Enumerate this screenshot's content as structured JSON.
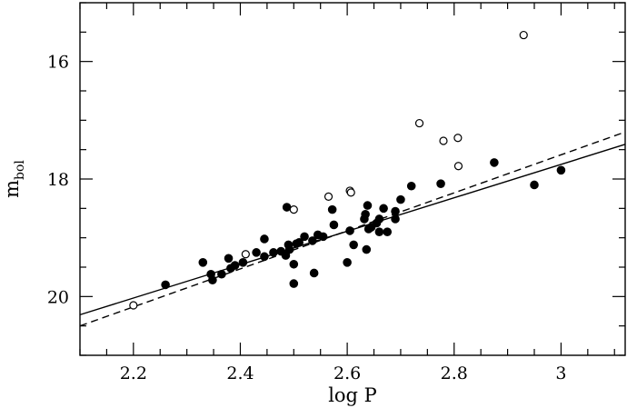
{
  "chart_data": {
    "type": "scatter",
    "title": "",
    "xlabel": "log  P",
    "ylabel": {
      "main": "m",
      "sub": "bol"
    },
    "xlim": [
      2.1,
      3.12
    ],
    "ylim": [
      21.0,
      15.0
    ],
    "y_inverted": true,
    "x_ticks": [
      2.2,
      2.4,
      2.6,
      2.8,
      3.0
    ],
    "x_tick_labels": [
      "2.2",
      "2.4",
      "2.6",
      "2.8",
      "3"
    ],
    "y_ticks": [
      16,
      18,
      20
    ],
    "y_tick_labels": [
      "16",
      "18",
      "20"
    ],
    "x_minor_step": 0.05,
    "y_minor_step": 0.5,
    "grid": false,
    "legend": "none",
    "series": [
      {
        "marker": "filled-circle",
        "color": "#000000",
        "points": [
          [
            2.26,
            19.8
          ],
          [
            2.33,
            19.42
          ],
          [
            2.345,
            19.62
          ],
          [
            2.348,
            19.72
          ],
          [
            2.365,
            19.62
          ],
          [
            2.378,
            19.35
          ],
          [
            2.39,
            19.47
          ],
          [
            2.382,
            19.52
          ],
          [
            2.405,
            19.42
          ],
          [
            2.43,
            19.25
          ],
          [
            2.445,
            19.02
          ],
          [
            2.445,
            19.32
          ],
          [
            2.462,
            19.25
          ],
          [
            2.476,
            19.23
          ],
          [
            2.485,
            19.3
          ],
          [
            2.487,
            18.48
          ],
          [
            2.49,
            19.12
          ],
          [
            2.492,
            19.2
          ],
          [
            2.5,
            19.45
          ],
          [
            2.505,
            19.1
          ],
          [
            2.5,
            19.78
          ],
          [
            2.51,
            19.08
          ],
          [
            2.52,
            18.98
          ],
          [
            2.535,
            19.05
          ],
          [
            2.538,
            19.6
          ],
          [
            2.545,
            18.95
          ],
          [
            2.555,
            18.98
          ],
          [
            2.572,
            18.52
          ],
          [
            2.575,
            18.78
          ],
          [
            2.6,
            19.42
          ],
          [
            2.605,
            18.88
          ],
          [
            2.612,
            19.12
          ],
          [
            2.632,
            18.68
          ],
          [
            2.634,
            18.6
          ],
          [
            2.638,
            18.45
          ],
          [
            2.636,
            19.2
          ],
          [
            2.64,
            18.85
          ],
          [
            2.645,
            18.82
          ],
          [
            2.655,
            18.75
          ],
          [
            2.66,
            18.68
          ],
          [
            2.66,
            18.9
          ],
          [
            2.668,
            18.5
          ],
          [
            2.675,
            18.9
          ],
          [
            2.69,
            18.68
          ],
          [
            2.69,
            18.55
          ],
          [
            2.7,
            18.35
          ],
          [
            2.72,
            18.12
          ],
          [
            2.775,
            18.08
          ],
          [
            2.875,
            17.72
          ],
          [
            2.95,
            18.1
          ],
          [
            3.0,
            17.85
          ]
        ]
      },
      {
        "marker": "open-circle",
        "color": "#000000",
        "points": [
          [
            2.2,
            20.15
          ],
          [
            2.41,
            19.28
          ],
          [
            2.5,
            18.52
          ],
          [
            2.565,
            18.3
          ],
          [
            2.605,
            18.2
          ],
          [
            2.607,
            18.23
          ],
          [
            2.735,
            17.05
          ],
          [
            2.78,
            17.35
          ],
          [
            2.807,
            17.3
          ],
          [
            2.808,
            17.78
          ],
          [
            2.93,
            15.55
          ]
        ]
      }
    ],
    "fit_lines": [
      {
        "style": "solid",
        "color": "#000000",
        "from": [
          2.1,
          20.31
        ],
        "to": [
          3.12,
          17.41
        ]
      },
      {
        "style": "dashed",
        "color": "#000000",
        "from": [
          2.1,
          20.5
        ],
        "to": [
          3.12,
          17.2
        ]
      }
    ]
  }
}
